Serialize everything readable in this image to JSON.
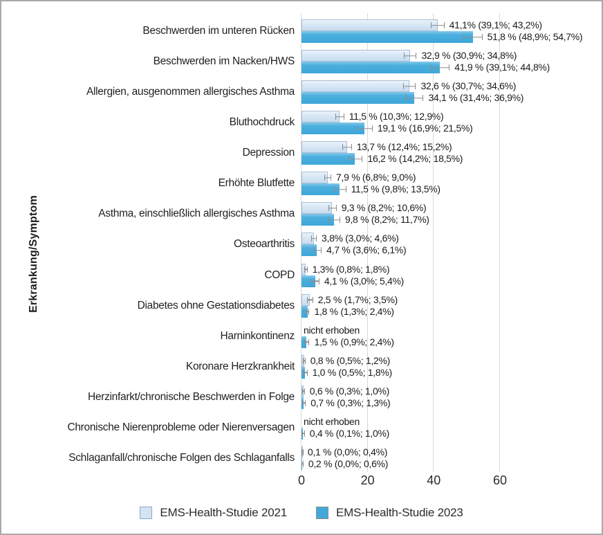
{
  "chart_data": {
    "type": "bar",
    "orientation": "horizontal",
    "title": "",
    "xlabel": "",
    "ylabel": "Erkrankung/Symptom",
    "xlim": [
      0,
      80
    ],
    "xticks": [
      0,
      20,
      40,
      60
    ],
    "grid": "vertical-light",
    "legend_position": "bottom-center",
    "error_bars": "95%-CI, grey caps",
    "not_collected_label": "nicht erhoben",
    "series": [
      {
        "name": "EMS-Health-Studie 2021",
        "color": "#d3e4f4",
        "border_color": "#a7bed4"
      },
      {
        "name": "EMS-Health-Studie 2023",
        "color": "#41a9da",
        "border_color": "#8c8c8c"
      }
    ],
    "categories": [
      "Beschwerden im unteren Rücken",
      "Beschwerden im Nacken/HWS",
      "Allergien, ausgenommen allergisches Asthma",
      "Bluthochdruck",
      "Depression",
      "Erhöhte Blutfette",
      "Asthma, einschließlich allergisches Asthma",
      "Osteoarthritis",
      "COPD",
      "Diabetes ohne Gestationsdiabetes",
      "Harninkontinenz",
      "Koronare Herzkrankheit",
      "Herzinfarkt/chronische Beschwerden in Folge",
      "Chronische Nierenprobleme oder Nierenversagen",
      "Schlaganfall/chronische Folgen des Schlaganfalls"
    ],
    "rows": [
      {
        "category": "Beschwerden im unteren Rücken",
        "s2021": {
          "value": 41.1,
          "ci_low": 39.1,
          "ci_high": 43.2,
          "label": "41,1% (39,1%; 43,2%)"
        },
        "s2023": {
          "value": 51.8,
          "ci_low": 48.9,
          "ci_high": 54.7,
          "label": "51,8 % (48,9%; 54,7%)"
        }
      },
      {
        "category": "Beschwerden im Nacken/HWS",
        "s2021": {
          "value": 32.9,
          "ci_low": 30.9,
          "ci_high": 34.8,
          "label": "32,9 % (30,9%; 34,8%)"
        },
        "s2023": {
          "value": 41.9,
          "ci_low": 39.1,
          "ci_high": 44.8,
          "label": "41,9 % (39,1%; 44,8%)"
        }
      },
      {
        "category": "Allergien, ausgenommen allergisches Asthma",
        "s2021": {
          "value": 32.6,
          "ci_low": 30.7,
          "ci_high": 34.6,
          "label": "32,6 % (30,7%; 34,6%)"
        },
        "s2023": {
          "value": 34.1,
          "ci_low": 31.4,
          "ci_high": 36.9,
          "label": "34,1 % (31,4%; 36,9%)"
        }
      },
      {
        "category": "Bluthochdruck",
        "s2021": {
          "value": 11.5,
          "ci_low": 10.3,
          "ci_high": 12.9,
          "label": "11,5 % (10,3%; 12,9%)"
        },
        "s2023": {
          "value": 19.1,
          "ci_low": 16.9,
          "ci_high": 21.5,
          "label": "19,1 % (16,9%; 21,5%)"
        }
      },
      {
        "category": "Depression",
        "s2021": {
          "value": 13.7,
          "ci_low": 12.4,
          "ci_high": 15.2,
          "label": "13,7 % (12,4%; 15,2%)"
        },
        "s2023": {
          "value": 16.2,
          "ci_low": 14.2,
          "ci_high": 18.5,
          "label": "16,2 % (14,2%; 18,5%)"
        }
      },
      {
        "category": "Erhöhte Blutfette",
        "s2021": {
          "value": 7.9,
          "ci_low": 6.8,
          "ci_high": 9.0,
          "label": "7,9 % (6,8%; 9,0%)"
        },
        "s2023": {
          "value": 11.5,
          "ci_low": 9.8,
          "ci_high": 13.5,
          "label": "11,5 % (9,8%; 13,5%)"
        }
      },
      {
        "category": "Asthma, einschließlich allergisches Asthma",
        "s2021": {
          "value": 9.3,
          "ci_low": 8.2,
          "ci_high": 10.6,
          "label": "9,3 % (8,2%; 10,6%)"
        },
        "s2023": {
          "value": 9.8,
          "ci_low": 8.2,
          "ci_high": 11.7,
          "label": "9,8 % (8,2%; 11,7%)"
        }
      },
      {
        "category": "Osteoarthritis",
        "s2021": {
          "value": 3.8,
          "ci_low": 3.0,
          "ci_high": 4.6,
          "label": "3,8% (3,0%; 4,6%)"
        },
        "s2023": {
          "value": 4.7,
          "ci_low": 3.6,
          "ci_high": 6.1,
          "label": "4,7 % (3,6%; 6,1%)"
        }
      },
      {
        "category": "COPD",
        "s2021": {
          "value": 1.3,
          "ci_low": 0.8,
          "ci_high": 1.8,
          "label": "1,3% (0,8%; 1,8%)"
        },
        "s2023": {
          "value": 4.1,
          "ci_low": 3.0,
          "ci_high": 5.4,
          "label": "4,1 % (3,0%; 5,4%)"
        }
      },
      {
        "category": "Diabetes ohne Gestationsdiabetes",
        "s2021": {
          "value": 2.5,
          "ci_low": 1.7,
          "ci_high": 3.5,
          "label": "2,5 % (1,7%; 3,5%)"
        },
        "s2023": {
          "value": 1.8,
          "ci_low": 1.3,
          "ci_high": 2.4,
          "label": "1,8 % (1,3%; 2,4%)"
        }
      },
      {
        "category": "Harninkontinenz",
        "s2021": {
          "value": null,
          "ci_low": null,
          "ci_high": null,
          "label": "nicht erhoben"
        },
        "s2023": {
          "value": 1.5,
          "ci_low": 0.9,
          "ci_high": 2.4,
          "label": "1,5 % (0,9%; 2,4%)"
        }
      },
      {
        "category": "Koronare Herzkrankheit",
        "s2021": {
          "value": 0.8,
          "ci_low": 0.5,
          "ci_high": 1.2,
          "label": "0,8 % (0,5%; 1,2%)"
        },
        "s2023": {
          "value": 1.0,
          "ci_low": 0.5,
          "ci_high": 1.8,
          "label": "1,0 % (0,5%; 1,8%)"
        }
      },
      {
        "category": "Herzinfarkt/chronische Beschwerden in Folge",
        "s2021": {
          "value": 0.6,
          "ci_low": 0.3,
          "ci_high": 1.0,
          "label": "0,6 % (0,3%; 1,0%)"
        },
        "s2023": {
          "value": 0.7,
          "ci_low": 0.3,
          "ci_high": 1.3,
          "label": "0,7 % (0,3%; 1,3%)"
        }
      },
      {
        "category": "Chronische Nierenprobleme oder Nierenversagen",
        "s2021": {
          "value": null,
          "ci_low": null,
          "ci_high": null,
          "label": "nicht erhoben"
        },
        "s2023": {
          "value": 0.4,
          "ci_low": 0.1,
          "ci_high": 1.0,
          "label": "0,4 % (0,1%; 1,0%)"
        }
      },
      {
        "category": "Schlaganfall/chronische Folgen des Schlaganfalls",
        "s2021": {
          "value": 0.1,
          "ci_low": 0.0,
          "ci_high": 0.4,
          "label": "0,1 % (0,0%; 0,4%)"
        },
        "s2023": {
          "value": 0.2,
          "ci_low": 0.0,
          "ci_high": 0.6,
          "label": "0,2 % (0,0%; 0,6%)"
        }
      }
    ],
    "colors": {
      "gridline": "#d9d9d9",
      "error_bar": "#8c8c8c",
      "text": "#1f1f1f",
      "figure_border": "#a9a9a9"
    }
  }
}
